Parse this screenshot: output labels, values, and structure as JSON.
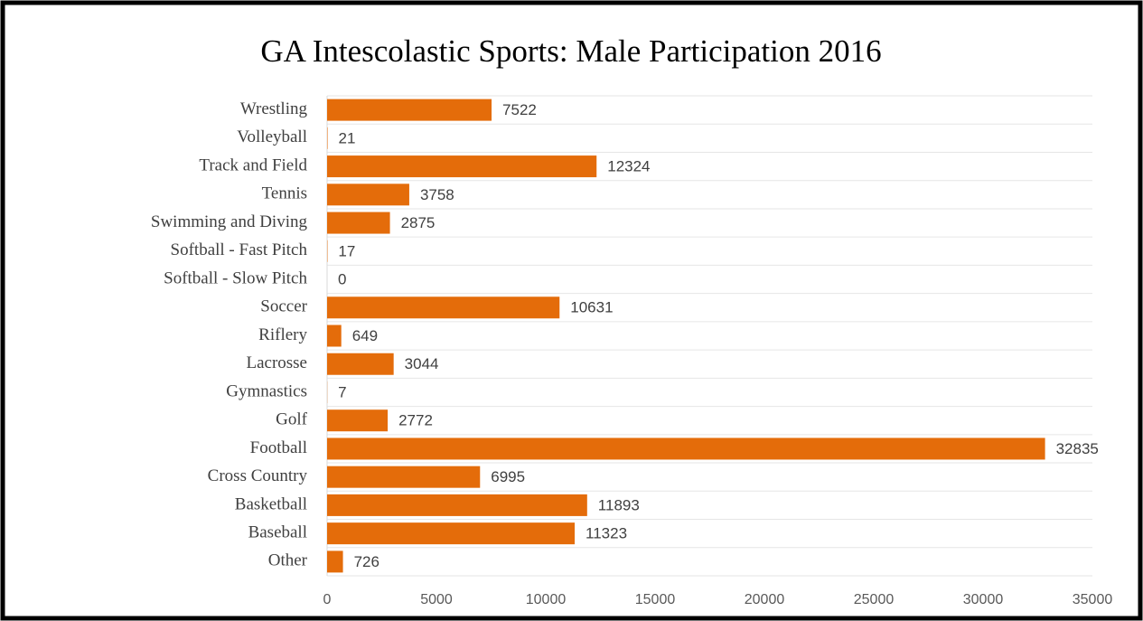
{
  "chart_data": {
    "type": "bar",
    "orientation": "horizontal",
    "title": "GA Intescolastic Sports: Male Participation 2016",
    "categories": [
      "Wrestling",
      "Volleyball",
      "Track and Field",
      "Tennis",
      "Swimming and Diving",
      "Softball - Fast Pitch",
      "Softball - Slow Pitch",
      "Soccer",
      "Riflery",
      "Lacrosse",
      "Gymnastics",
      "Golf",
      "Football",
      "Cross Country",
      "Basketball",
      "Baseball",
      "Other"
    ],
    "values": [
      7522,
      21,
      12324,
      3758,
      2875,
      17,
      0,
      10631,
      649,
      3044,
      7,
      2772,
      32835,
      6995,
      11893,
      11323,
      726
    ],
    "color": "#e46c0a",
    "xlim": [
      0,
      35000
    ],
    "xticks": [
      0,
      5000,
      10000,
      15000,
      20000,
      25000,
      30000,
      35000
    ],
    "grid": false
  }
}
